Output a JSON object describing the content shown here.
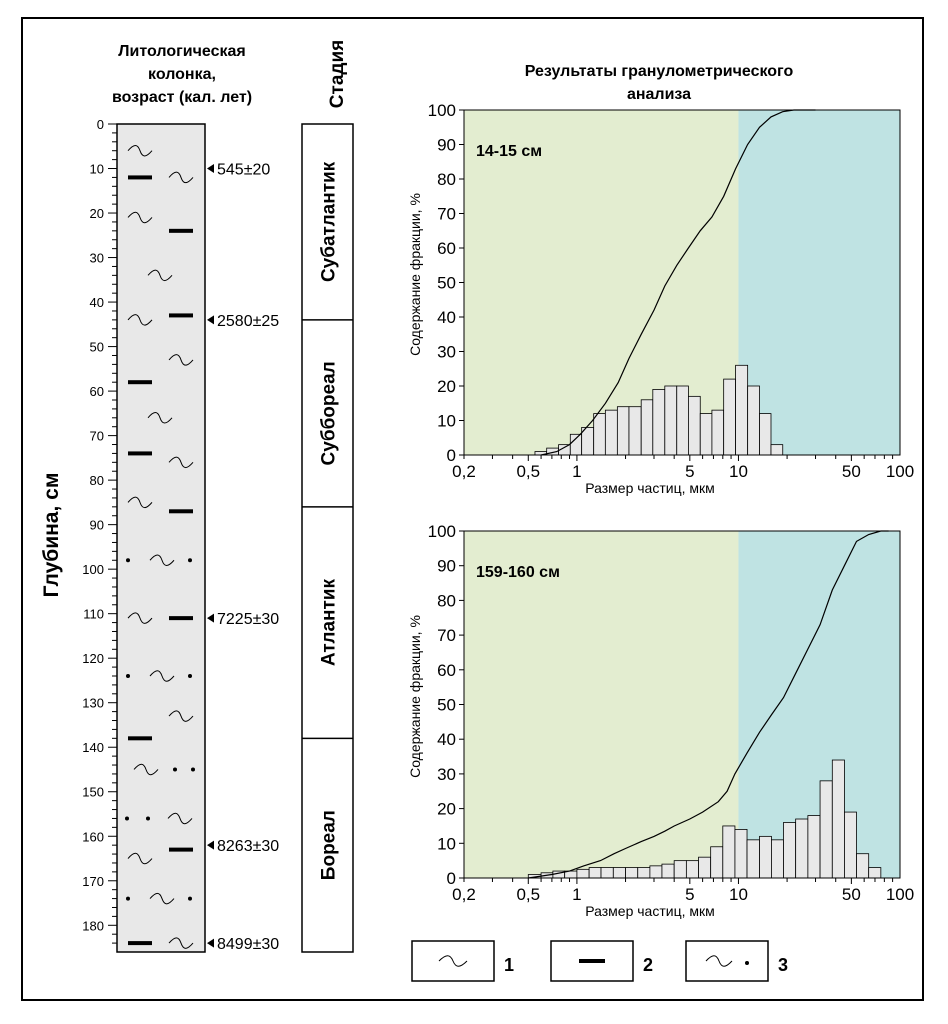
{
  "column": {
    "title_lines": [
      "Литологическая",
      "колонка,",
      "возраст (кал. лет)"
    ],
    "depth_label": "Глубина, см",
    "depth_ticks": [
      "0",
      "10",
      "20",
      "30",
      "40",
      "50",
      "60",
      "70",
      "80",
      "90",
      "100",
      "110",
      "120",
      "130",
      "140",
      "150",
      "160",
      "170",
      "180"
    ],
    "depth_max": 186,
    "dates": [
      {
        "depth": 10,
        "label": "545±20"
      },
      {
        "depth": 44,
        "label": "2580±25"
      },
      {
        "depth": 111,
        "label": "7225±30"
      },
      {
        "depth": 162,
        "label": "8263±30"
      },
      {
        "depth": 184,
        "label": "8499±30"
      }
    ],
    "symbols": [
      {
        "depth": 6,
        "pos": "left",
        "kind": "wave"
      },
      {
        "depth": 12,
        "pos": "right",
        "kind": "wave"
      },
      {
        "depth": 12,
        "pos": "left",
        "kind": "bar"
      },
      {
        "depth": 21,
        "pos": "left",
        "kind": "wave"
      },
      {
        "depth": 24,
        "pos": "right",
        "kind": "bar"
      },
      {
        "depth": 34,
        "pos": "center",
        "kind": "wave"
      },
      {
        "depth": 44,
        "pos": "left",
        "kind": "wave"
      },
      {
        "depth": 43,
        "pos": "right",
        "kind": "bar"
      },
      {
        "depth": 53,
        "pos": "right",
        "kind": "wave"
      },
      {
        "depth": 58,
        "pos": "left",
        "kind": "bar"
      },
      {
        "depth": 66,
        "pos": "center",
        "kind": "wave"
      },
      {
        "depth": 74,
        "pos": "left",
        "kind": "bar"
      },
      {
        "depth": 76,
        "pos": "right",
        "kind": "wave"
      },
      {
        "depth": 85,
        "pos": "left",
        "kind": "wave"
      },
      {
        "depth": 87,
        "pos": "right",
        "kind": "bar"
      },
      {
        "depth": 98,
        "pos": "center",
        "kind": "wavedot"
      },
      {
        "depth": 111,
        "pos": "left",
        "kind": "wave"
      },
      {
        "depth": 111,
        "pos": "right",
        "kind": "bar"
      },
      {
        "depth": 124,
        "pos": "center",
        "kind": "wavedot"
      },
      {
        "depth": 133,
        "pos": "right",
        "kind": "wave"
      },
      {
        "depth": 138,
        "pos": "left",
        "kind": "bar"
      },
      {
        "depth": 145,
        "pos": "center",
        "kind": "wavedotright"
      },
      {
        "depth": 156,
        "pos": "center",
        "kind": "dotsleftwave"
      },
      {
        "depth": 165,
        "pos": "left",
        "kind": "wave"
      },
      {
        "depth": 163,
        "pos": "right",
        "kind": "bar"
      },
      {
        "depth": 174,
        "pos": "center",
        "kind": "wavedot"
      },
      {
        "depth": 184,
        "pos": "left",
        "kind": "bar"
      },
      {
        "depth": 184,
        "pos": "right",
        "kind": "wave"
      }
    ]
  },
  "stages": {
    "header": "Стадия",
    "items": [
      {
        "name": "Субатлантик",
        "from": 0,
        "to": 44
      },
      {
        "name": "Суббореал",
        "from": 44,
        "to": 86
      },
      {
        "name": "Атлантик",
        "from": 86,
        "to": 138
      },
      {
        "name": "Бореал",
        "from": 138,
        "to": 186
      }
    ]
  },
  "granulometry": {
    "title_lines": [
      "Результаты гранулометрического",
      "анализа"
    ],
    "colors": {
      "fine_zone": "#e3edd0",
      "coarse_zone": "#bfe3e3",
      "bar_fill": "#e8e8e8"
    }
  },
  "chart_data": [
    {
      "type": "bar",
      "label": "14-15 см",
      "xlabel": "Размер частиц, мкм",
      "ylabel": "Содержание фракции, %",
      "xscale": "log",
      "xlim": [
        0.2,
        100
      ],
      "ylim": [
        0,
        100
      ],
      "x_ticks": [
        "0,2",
        "0,5",
        "1",
        "5",
        "10",
        "50",
        "100"
      ],
      "y_ticks": [
        "0",
        "10",
        "20",
        "30",
        "40",
        "50",
        "60",
        "70",
        "80",
        "90",
        "100"
      ],
      "zone_boundary": 10,
      "bins": [
        {
          "x0": 0.55,
          "x1": 0.65,
          "value": 1
        },
        {
          "x0": 0.65,
          "x1": 0.77,
          "value": 2
        },
        {
          "x0": 0.77,
          "x1": 0.91,
          "value": 3
        },
        {
          "x0": 0.91,
          "x1": 1.07,
          "value": 6
        },
        {
          "x0": 1.07,
          "x1": 1.27,
          "value": 8
        },
        {
          "x0": 1.27,
          "x1": 1.5,
          "value": 12
        },
        {
          "x0": 1.5,
          "x1": 1.78,
          "value": 13
        },
        {
          "x0": 1.78,
          "x1": 2.1,
          "value": 14
        },
        {
          "x0": 2.1,
          "x1": 2.5,
          "value": 14
        },
        {
          "x0": 2.5,
          "x1": 2.95,
          "value": 16
        },
        {
          "x0": 2.95,
          "x1": 3.5,
          "value": 19
        },
        {
          "x0": 3.5,
          "x1": 4.15,
          "value": 20
        },
        {
          "x0": 4.15,
          "x1": 4.9,
          "value": 20
        },
        {
          "x0": 4.9,
          "x1": 5.8,
          "value": 17
        },
        {
          "x0": 5.8,
          "x1": 6.85,
          "value": 12
        },
        {
          "x0": 6.85,
          "x1": 8.1,
          "value": 13
        },
        {
          "x0": 8.1,
          "x1": 9.6,
          "value": 22
        },
        {
          "x0": 9.6,
          "x1": 11.4,
          "value": 26
        },
        {
          "x0": 11.4,
          "x1": 13.5,
          "value": 20
        },
        {
          "x0": 13.5,
          "x1": 15.9,
          "value": 12
        },
        {
          "x0": 15.9,
          "x1": 18.8,
          "value": 3
        }
      ],
      "cumulative": [
        [
          0.6,
          0
        ],
        [
          0.75,
          1
        ],
        [
          0.9,
          3
        ],
        [
          1.05,
          6
        ],
        [
          1.25,
          10
        ],
        [
          1.5,
          15
        ],
        [
          1.8,
          21
        ],
        [
          2.1,
          28
        ],
        [
          2.5,
          35
        ],
        [
          3.0,
          42
        ],
        [
          3.5,
          49
        ],
        [
          4.15,
          55
        ],
        [
          4.9,
          60
        ],
        [
          5.8,
          65
        ],
        [
          6.85,
          69
        ],
        [
          8.1,
          75
        ],
        [
          9.6,
          83
        ],
        [
          11.4,
          90
        ],
        [
          13.5,
          95
        ],
        [
          15.9,
          98
        ],
        [
          18.8,
          99.5
        ],
        [
          22,
          100
        ],
        [
          30,
          100
        ]
      ]
    },
    {
      "type": "bar",
      "label": "159-160 см",
      "xlabel": "Размер частиц, мкм",
      "ylabel": "Содержание фракции, %",
      "xscale": "log",
      "xlim": [
        0.2,
        100
      ],
      "ylim": [
        0,
        100
      ],
      "x_ticks": [
        "0,2",
        "0,5",
        "1",
        "5",
        "10",
        "50",
        "100"
      ],
      "y_ticks": [
        "0",
        "10",
        "20",
        "30",
        "40",
        "50",
        "60",
        "70",
        "80",
        "90",
        "100"
      ],
      "zone_boundary": 10,
      "bins": [
        {
          "x0": 0.5,
          "x1": 0.6,
          "value": 1
        },
        {
          "x0": 0.6,
          "x1": 0.71,
          "value": 1.5
        },
        {
          "x0": 0.71,
          "x1": 0.84,
          "value": 2
        },
        {
          "x0": 0.84,
          "x1": 1.0,
          "value": 2
        },
        {
          "x0": 1.0,
          "x1": 1.19,
          "value": 2.5
        },
        {
          "x0": 1.19,
          "x1": 1.41,
          "value": 3
        },
        {
          "x0": 1.41,
          "x1": 1.68,
          "value": 3
        },
        {
          "x0": 1.68,
          "x1": 2.0,
          "value": 3
        },
        {
          "x0": 2.0,
          "x1": 2.38,
          "value": 3
        },
        {
          "x0": 2.38,
          "x1": 2.83,
          "value": 3
        },
        {
          "x0": 2.83,
          "x1": 3.36,
          "value": 3.5
        },
        {
          "x0": 3.36,
          "x1": 4.0,
          "value": 4
        },
        {
          "x0": 4.0,
          "x1": 4.76,
          "value": 5
        },
        {
          "x0": 4.76,
          "x1": 5.66,
          "value": 5
        },
        {
          "x0": 5.66,
          "x1": 6.73,
          "value": 6
        },
        {
          "x0": 6.73,
          "x1": 8.0,
          "value": 9
        },
        {
          "x0": 8.0,
          "x1": 9.51,
          "value": 15
        },
        {
          "x0": 9.51,
          "x1": 11.3,
          "value": 14
        },
        {
          "x0": 11.3,
          "x1": 13.5,
          "value": 11
        },
        {
          "x0": 13.5,
          "x1": 16.0,
          "value": 12
        },
        {
          "x0": 16.0,
          "x1": 19.0,
          "value": 11
        },
        {
          "x0": 19.0,
          "x1": 22.6,
          "value": 16
        },
        {
          "x0": 22.6,
          "x1": 26.9,
          "value": 17
        },
        {
          "x0": 26.9,
          "x1": 32.0,
          "value": 18
        },
        {
          "x0": 32.0,
          "x1": 38.1,
          "value": 28
        },
        {
          "x0": 38.1,
          "x1": 45.3,
          "value": 34
        },
        {
          "x0": 45.3,
          "x1": 53.8,
          "value": 19
        },
        {
          "x0": 53.8,
          "x1": 64.0,
          "value": 7
        },
        {
          "x0": 64.0,
          "x1": 76.1,
          "value": 3
        }
      ],
      "cumulative": [
        [
          0.5,
          0
        ],
        [
          0.7,
          1
        ],
        [
          0.9,
          2
        ],
        [
          1.1,
          3.5
        ],
        [
          1.4,
          5
        ],
        [
          1.7,
          7
        ],
        [
          2.0,
          8.5
        ],
        [
          2.5,
          10.5
        ],
        [
          3.0,
          12
        ],
        [
          3.5,
          13.5
        ],
        [
          4.0,
          15
        ],
        [
          5.0,
          17
        ],
        [
          6.0,
          19
        ],
        [
          7.5,
          22
        ],
        [
          8.5,
          25
        ],
        [
          9.5,
          30
        ],
        [
          11.3,
          36
        ],
        [
          13.5,
          42
        ],
        [
          16.0,
          47
        ],
        [
          19.0,
          52
        ],
        [
          22.6,
          59
        ],
        [
          26.9,
          66
        ],
        [
          32.0,
          73
        ],
        [
          38.1,
          83
        ],
        [
          45.3,
          90
        ],
        [
          53.8,
          97
        ],
        [
          64.0,
          99
        ],
        [
          76.1,
          100
        ],
        [
          85,
          100
        ]
      ]
    }
  ],
  "legend": {
    "items": [
      {
        "number": "1",
        "kind": "wave"
      },
      {
        "number": "2",
        "kind": "bar"
      },
      {
        "number": "3",
        "kind": "wavedot"
      }
    ]
  }
}
